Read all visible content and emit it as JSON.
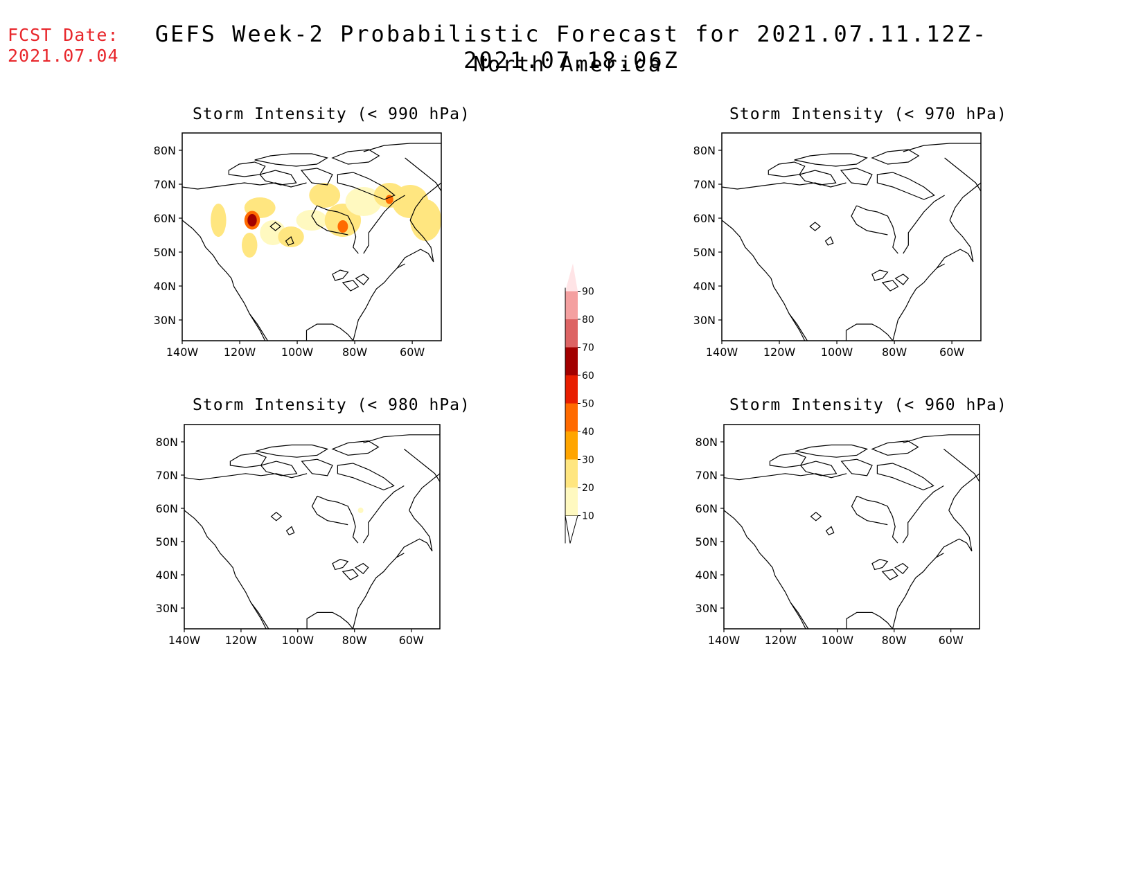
{
  "header": {
    "fcst_label": "FCST Date:",
    "fcst_date": "2021.07.04",
    "title": "GEFS Week-2 Probabilistic Forecast for 2021.07.11.12Z-2021.07.18.06Z",
    "subtitle": "North America"
  },
  "panels": [
    {
      "title": "Storm Intensity (< 990 hPa)",
      "has_probability": true
    },
    {
      "title": "Storm Intensity (< 970 hPa)",
      "has_probability": false
    },
    {
      "title": "Storm Intensity (< 980 hPa)",
      "has_probability": "trace"
    },
    {
      "title": "Storm Intensity (< 960 hPa)",
      "has_probability": false
    }
  ],
  "axes": {
    "lat_labels": [
      "80N",
      "70N",
      "60N",
      "50N",
      "40N",
      "30N"
    ],
    "lon_labels": [
      "140W",
      "120W",
      "100W",
      "80W",
      "60W"
    ]
  },
  "colorbar": {
    "levels": [
      "10",
      "20",
      "30",
      "40",
      "50",
      "60",
      "70",
      "80",
      "90"
    ],
    "colors": [
      "#fff9c0",
      "#ffe680",
      "#ffa500",
      "#ff6a00",
      "#e81e00",
      "#a20000",
      "#dd6464",
      "#f4a0a0",
      "#ffe4e6"
    ]
  }
}
